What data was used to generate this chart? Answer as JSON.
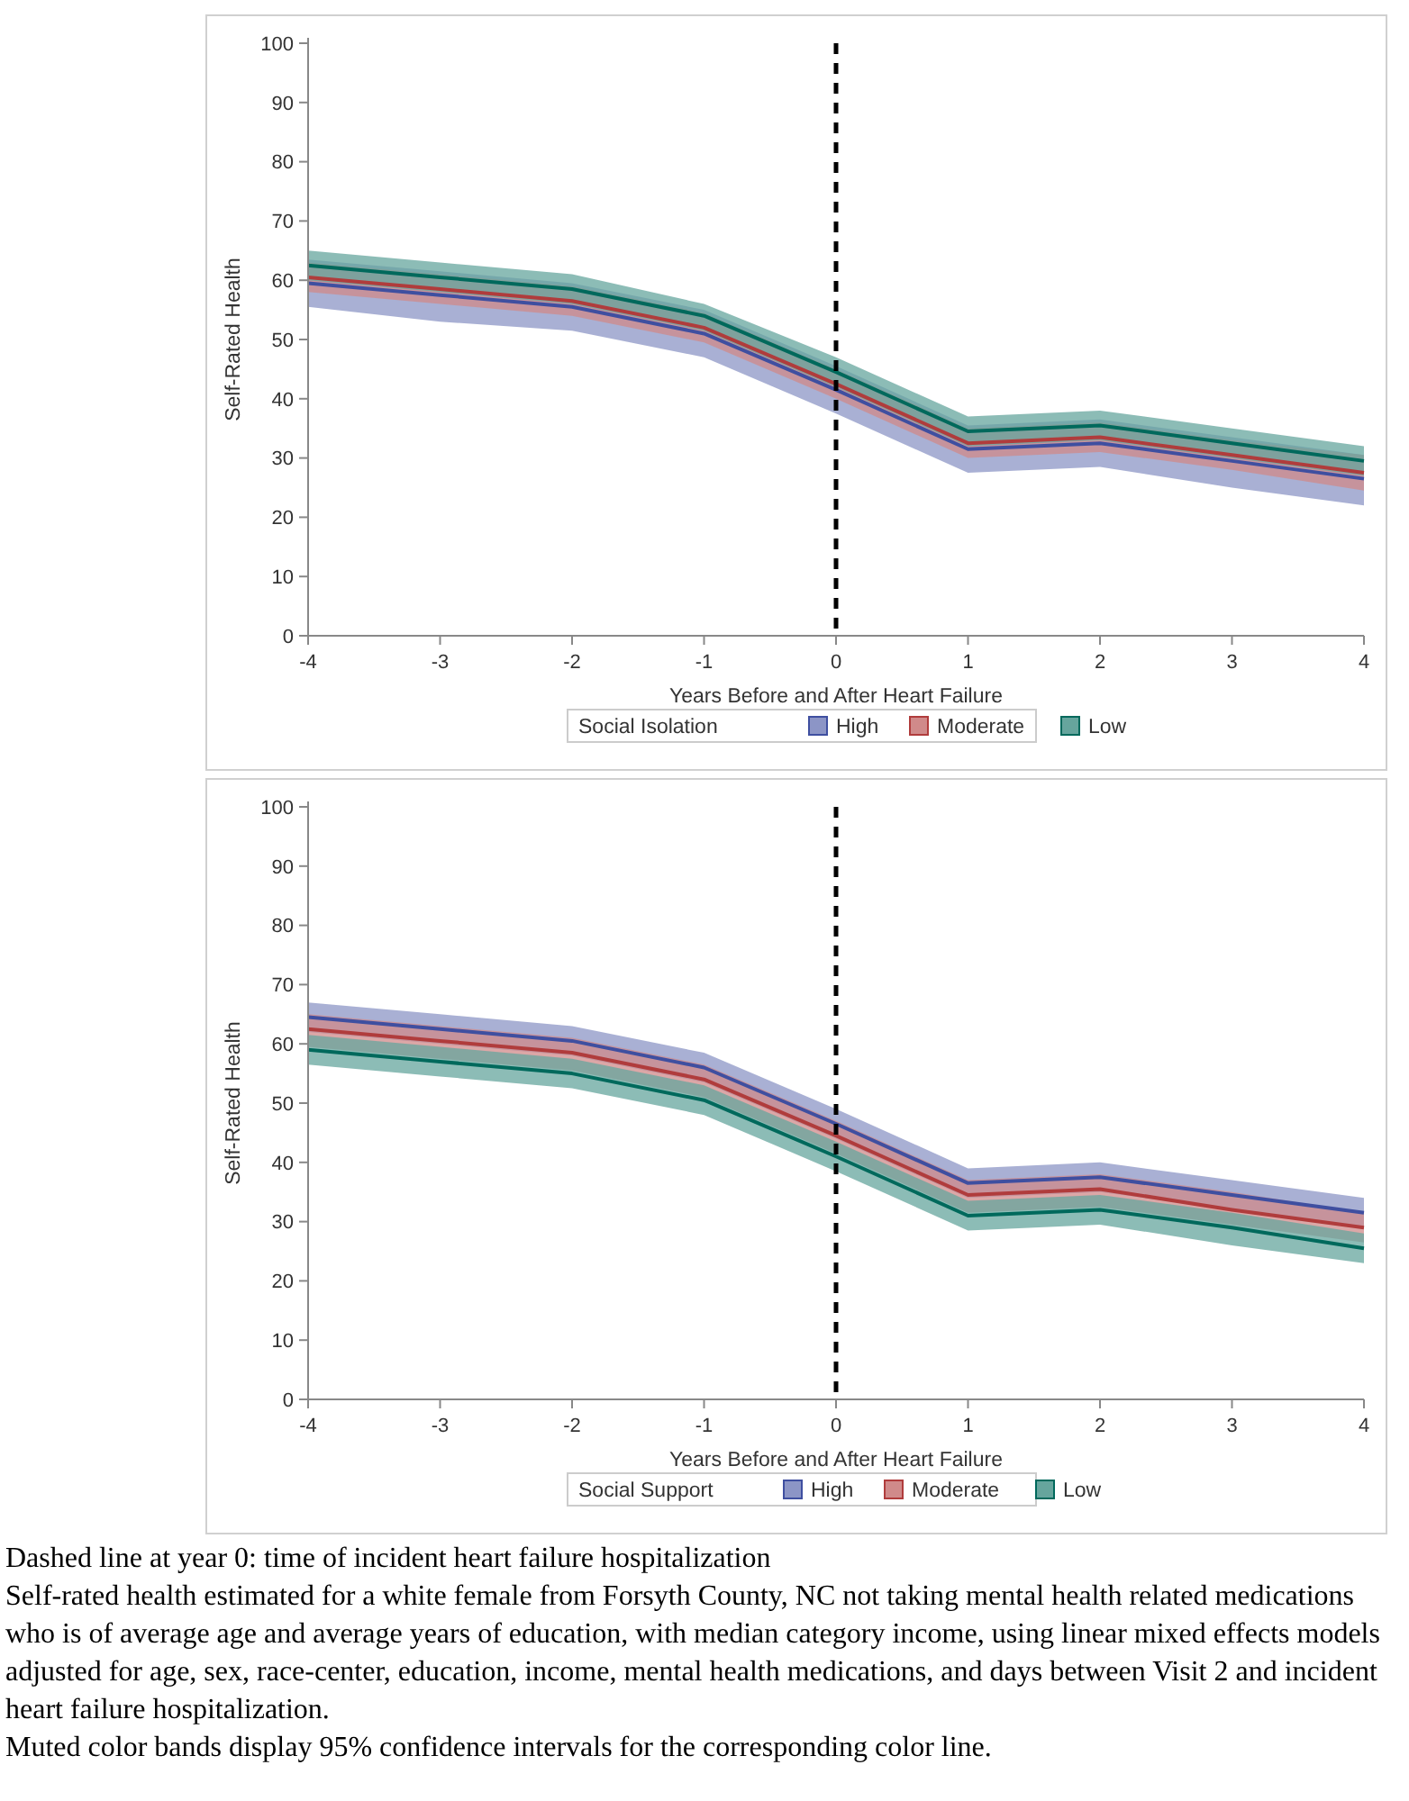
{
  "chart_data": [
    {
      "type": "line",
      "xlabel": "Years Before and After Heart Failure",
      "ylabel": "Self-Rated Health",
      "legend_title": "Social Isolation",
      "legend": "bottom",
      "grid": false,
      "marker": "none",
      "line_style": "solid",
      "x": [
        -4,
        -3,
        -2,
        -1,
        0,
        1,
        2,
        3,
        4
      ],
      "xlim": [
        -4,
        4
      ],
      "xticks": [
        -4,
        -3,
        -2,
        -1,
        0,
        1,
        2,
        3,
        4
      ],
      "ylim": [
        0,
        100
      ],
      "yticks": [
        0,
        10,
        20,
        30,
        40,
        50,
        60,
        70,
        80,
        90,
        100
      ],
      "ref_lines": [
        {
          "axis": "x",
          "value": 0,
          "color": "#000000",
          "line_style": "dashed"
        }
      ],
      "series": [
        {
          "name": "High",
          "color": "#3f4fa0",
          "values": [
            59.5,
            57.5,
            55.5,
            51,
            41.5,
            31.5,
            32.5,
            29.5,
            26.5
          ],
          "lower": [
            55.5,
            53,
            51.5,
            47,
            37.5,
            27.5,
            28.5,
            25,
            22
          ],
          "upper": [
            63.5,
            61.5,
            59.5,
            55,
            45.5,
            35.5,
            36.5,
            33.5,
            30.5
          ]
        },
        {
          "name": "Moderate",
          "color": "#b03c3c",
          "values": [
            60.5,
            58.5,
            56.5,
            52,
            42.5,
            32.5,
            33.5,
            30.5,
            27.5
          ],
          "lower": [
            58,
            56,
            54,
            49.5,
            40,
            30,
            31,
            28,
            24.5
          ],
          "upper": [
            63,
            61,
            59,
            54.5,
            45,
            35,
            36,
            33,
            30.5
          ]
        },
        {
          "name": "Low",
          "color": "#00695c",
          "values": [
            62.5,
            60.5,
            58.5,
            54,
            44.5,
            34.5,
            35.5,
            32.5,
            29.5
          ],
          "lower": [
            60,
            58,
            56,
            51.5,
            42,
            32,
            33,
            30,
            27
          ],
          "upper": [
            65,
            63,
            61,
            56,
            47,
            37,
            38,
            35,
            32
          ]
        }
      ]
    },
    {
      "type": "line",
      "xlabel": "Years Before and After Heart Failure",
      "ylabel": "Self-Rated Health",
      "legend_title": "Social Support",
      "legend": "bottom",
      "grid": false,
      "marker": "none",
      "line_style": "solid",
      "x": [
        -4,
        -3,
        -2,
        -1,
        0,
        1,
        2,
        3,
        4
      ],
      "xlim": [
        -4,
        4
      ],
      "xticks": [
        -4,
        -3,
        -2,
        -1,
        0,
        1,
        2,
        3,
        4
      ],
      "ylim": [
        0,
        100
      ],
      "yticks": [
        0,
        10,
        20,
        30,
        40,
        50,
        60,
        70,
        80,
        90,
        100
      ],
      "ref_lines": [
        {
          "axis": "x",
          "value": 0,
          "color": "#000000",
          "line_style": "dashed"
        }
      ],
      "series": [
        {
          "name": "High",
          "color": "#3f4fa0",
          "values": [
            64.5,
            62.5,
            60.5,
            56,
            46.5,
            36.5,
            37.5,
            34.5,
            31.5
          ],
          "lower": [
            62,
            60,
            58,
            53.5,
            44,
            34,
            35,
            32,
            29
          ],
          "upper": [
            67,
            65,
            63,
            58.5,
            49,
            39,
            40,
            37,
            34
          ]
        },
        {
          "name": "Moderate",
          "color": "#b03c3c",
          "values": [
            62.5,
            60.5,
            58.5,
            54,
            44.5,
            34.5,
            35.5,
            32,
            29
          ],
          "lower": [
            59.5,
            57.5,
            55.5,
            51,
            41.5,
            31.5,
            32.5,
            29.5,
            26.5
          ],
          "upper": [
            65,
            63,
            61,
            56.5,
            47,
            37,
            38,
            35,
            31.5
          ]
        },
        {
          "name": "Low",
          "color": "#00695c",
          "values": [
            59,
            57,
            55,
            50.5,
            41,
            31,
            32,
            29,
            25.5
          ],
          "lower": [
            56.5,
            54.5,
            52.5,
            48,
            38.5,
            28.5,
            29.5,
            26,
            23
          ],
          "upper": [
            61.5,
            59.5,
            57.5,
            53,
            43.5,
            33.5,
            34.5,
            31.5,
            28
          ]
        }
      ],
      "annotations": [
        "Dashed line at year 0: time of incident heart failure hospitalization",
        "Self-rated health estimated for a white female from Forsyth County, NC not taking mental health related medications who is of average age and average years of education, with median category income, using linear mixed effects models adjusted for age, sex, race-center, education, income, mental health medications, and days between Visit 2 and incident heart failure hospitalization.",
        "Muted color bands display 95% confidence intervals for the corresponding color line."
      ]
    }
  ]
}
